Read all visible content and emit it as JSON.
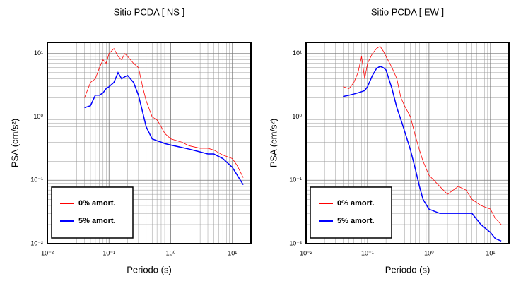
{
  "chart_data": [
    {
      "type": "line",
      "title": "Sitio PCDA [ NS ]",
      "xlabel": "Periodo (s)",
      "ylabel": "PSA (cm/s²)",
      "xscale": "log",
      "yscale": "log",
      "grid": true,
      "minor_grid": true,
      "legend": "lower left",
      "xlim": [
        0.01,
        20
      ],
      "ylim": [
        0.01,
        15
      ],
      "xticks": [
        {
          "value": 0.01,
          "label": "10⁻²"
        },
        {
          "value": 0.1,
          "label": "10⁻¹"
        },
        {
          "value": 1,
          "label": "10⁰"
        },
        {
          "value": 10,
          "label": "10¹"
        }
      ],
      "yticks": [
        {
          "value": 0.01,
          "label": "10⁻²"
        },
        {
          "value": 0.1,
          "label": "10⁻¹"
        },
        {
          "value": 1,
          "label": "10⁰"
        },
        {
          "value": 10,
          "label": "10¹"
        }
      ],
      "x": [
        0.04,
        0.05,
        0.06,
        0.07,
        0.08,
        0.09,
        0.1,
        0.12,
        0.14,
        0.16,
        0.18,
        0.2,
        0.25,
        0.3,
        0.35,
        0.4,
        0.5,
        0.6,
        0.7,
        0.8,
        1,
        1.5,
        2,
        3,
        4,
        5,
        7,
        10,
        12,
        15
      ],
      "series": [
        {
          "name": "0% amort.",
          "color": "#ff0000",
          "values": [
            2,
            3.5,
            4,
            6,
            8,
            7,
            10,
            12,
            9,
            8,
            10,
            9,
            7,
            6,
            3,
            1.8,
            1,
            0.9,
            0.7,
            0.55,
            0.45,
            0.4,
            0.35,
            0.32,
            0.32,
            0.3,
            0.25,
            0.22,
            0.17,
            0.11
          ]
        },
        {
          "name": "5% amort.",
          "color": "#0000ff",
          "values": [
            1.4,
            1.5,
            2.2,
            2.2,
            2.4,
            2.8,
            3,
            3.5,
            5,
            4,
            4.3,
            4.5,
            3.5,
            2.2,
            1.2,
            0.7,
            0.45,
            0.42,
            0.4,
            0.38,
            0.36,
            0.33,
            0.31,
            0.28,
            0.26,
            0.26,
            0.22,
            0.16,
            0.12,
            0.085
          ]
        }
      ]
    },
    {
      "type": "line",
      "title": "Sitio PCDA [ EW ]",
      "xlabel": "Periodo (s)",
      "ylabel": "PSA (cm/s²)",
      "xscale": "log",
      "yscale": "log",
      "grid": true,
      "minor_grid": true,
      "legend": "lower left",
      "xlim": [
        0.01,
        20
      ],
      "ylim": [
        0.01,
        15
      ],
      "xticks": [
        {
          "value": 0.01,
          "label": "10⁻²"
        },
        {
          "value": 0.1,
          "label": "10⁻¹"
        },
        {
          "value": 1,
          "label": "10⁰"
        },
        {
          "value": 10,
          "label": "10¹"
        }
      ],
      "yticks": [
        {
          "value": 0.01,
          "label": "10⁻²"
        },
        {
          "value": 0.1,
          "label": "10⁻¹"
        },
        {
          "value": 1,
          "label": "10⁰"
        },
        {
          "value": 10,
          "label": "10¹"
        }
      ],
      "x": [
        0.04,
        0.05,
        0.06,
        0.07,
        0.08,
        0.09,
        0.1,
        0.12,
        0.14,
        0.16,
        0.18,
        0.2,
        0.25,
        0.3,
        0.35,
        0.4,
        0.5,
        0.6,
        0.7,
        0.8,
        1,
        1.5,
        2,
        3,
        4,
        5,
        7,
        10,
        12,
        15
      ],
      "series": [
        {
          "name": "0% amort.",
          "color": "#ff0000",
          "values": [
            3,
            2.8,
            3.5,
            5,
            9,
            4,
            7,
            10,
            12,
            13,
            11,
            9,
            6,
            4,
            2,
            1.5,
            1,
            0.5,
            0.3,
            0.2,
            0.12,
            0.08,
            0.06,
            0.08,
            0.07,
            0.05,
            0.04,
            0.035,
            0.025,
            0.02
          ]
        },
        {
          "name": "5% amort.",
          "color": "#0000ff",
          "values": [
            2.1,
            2.2,
            2.3,
            2.4,
            2.5,
            2.6,
            3,
            4.5,
            5.8,
            6.3,
            6,
            5.5,
            2.8,
            1.4,
            0.9,
            0.6,
            0.3,
            0.15,
            0.08,
            0.05,
            0.035,
            0.03,
            0.03,
            0.03,
            0.03,
            0.03,
            0.02,
            0.015,
            0.012,
            0.011
          ]
        }
      ]
    }
  ]
}
